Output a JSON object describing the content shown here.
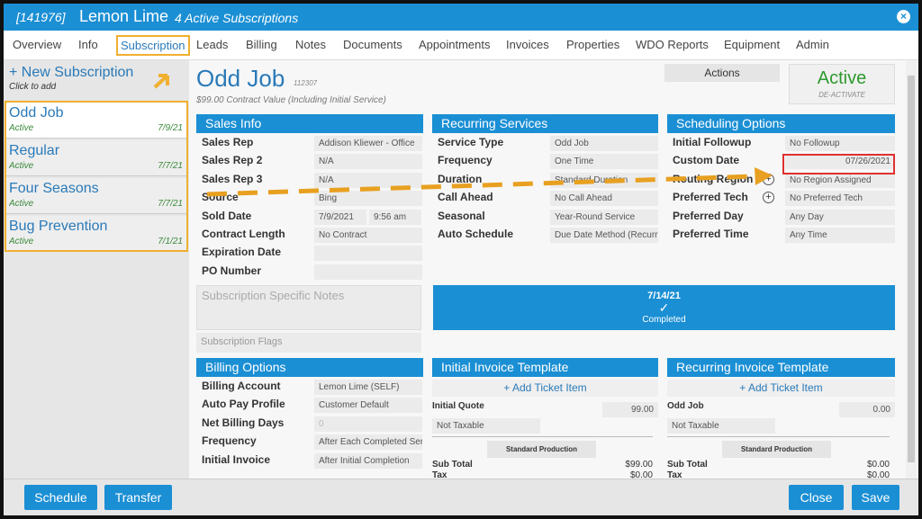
{
  "header": {
    "id": "[141976]",
    "name": "Lemon Lime",
    "subtitle": "4 Active Subscriptions"
  },
  "tabs": {
    "items": [
      "Overview",
      "Info",
      "Subscription",
      "Leads",
      "Billing",
      "Notes",
      "Documents",
      "Appointments",
      "Invoices",
      "Properties",
      "WDO Reports",
      "Equipment",
      "Admin"
    ],
    "active_index": 2
  },
  "sidebar": {
    "new_label": "+ New Subscription",
    "hint": "Click to add",
    "selected_index": 0,
    "items": [
      {
        "name": "Odd Job",
        "status": "Active",
        "date": "7/9/21"
      },
      {
        "name": "Regular",
        "status": "Active",
        "date": "7/7/21"
      },
      {
        "name": "Four Seasons",
        "status": "Active",
        "date": "7/7/21"
      },
      {
        "name": "Bug Prevention",
        "status": "Active",
        "date": "7/1/21"
      }
    ]
  },
  "subscription": {
    "title": "Odd Job",
    "code": "112307",
    "value_note": "$99.00 Contract Value (Including Initial Service)",
    "actions": "Actions",
    "status": "Active",
    "deactivate": "DE-ACTIVATE"
  },
  "sales_info": {
    "title": "Sales Info",
    "fields": [
      {
        "label": "Sales Rep",
        "value": "Addison Kliewer - Office"
      },
      {
        "label": "Sales Rep 2",
        "value": "N/A"
      },
      {
        "label": "Sales Rep 3",
        "value": "N/A"
      },
      {
        "label": "Source",
        "value": "Bing"
      },
      {
        "label": "Sold Date",
        "value": "7/9/2021",
        "value2": "9:56 am"
      },
      {
        "label": "Contract Length",
        "value": "No Contract"
      },
      {
        "label": "Expiration Date"
      },
      {
        "label": "PO Number"
      }
    ],
    "notes_placeholder": "Subscription Specific Notes",
    "flags_placeholder": "Subscription Flags"
  },
  "recurring_services": {
    "title": "Recurring Services",
    "fields": [
      {
        "label": "Service Type",
        "value": "Odd Job"
      },
      {
        "label": "Frequency",
        "value": "One Time"
      },
      {
        "label": "Duration",
        "value": "Standard Duration"
      },
      {
        "label": "Call Ahead",
        "value": "No Call Ahead"
      },
      {
        "label": "Seasonal",
        "value": "Year-Round Service"
      },
      {
        "label": "Auto Schedule",
        "value": "Due Date Method (Recurring)"
      }
    ]
  },
  "scheduling": {
    "title": "Scheduling Options",
    "fields": [
      {
        "label": "Initial Followup",
        "value": "No Followup"
      },
      {
        "label": "Custom Date",
        "value": "07/26/2021",
        "align": "right"
      },
      {
        "label": "Routing Region",
        "value": "No Region Assigned",
        "add_button": true
      },
      {
        "label": "Preferred Tech",
        "value": "No Preferred Tech",
        "add_button": true
      },
      {
        "label": "Preferred Day",
        "value": "Any Day"
      },
      {
        "label": "Preferred Time",
        "value": "Any Time"
      }
    ]
  },
  "completed": {
    "date": "7/14/21",
    "check": "✓",
    "label": "Completed"
  },
  "billing": {
    "title": "Billing Options",
    "fields": [
      {
        "label": "Billing Account",
        "value": "Lemon Lime (SELF)"
      },
      {
        "label": "Auto Pay Profile",
        "value": "Customer Default"
      },
      {
        "label": "Net Billing Days",
        "value": "0",
        "muted": true
      },
      {
        "label": "Frequency",
        "value": "After Each Completed Service"
      },
      {
        "label": "Initial Invoice",
        "value": "After Initial Completion"
      }
    ]
  },
  "initial_invoice": {
    "title": "Initial Invoice Template",
    "add": "+ Add Ticket Item",
    "item_label": "Initial Quote",
    "item_value": "99.00",
    "taxable": "Not Taxable",
    "production": "Standard Production",
    "subtotal_label": "Sub Total",
    "subtotal": "$99.00",
    "tax_label": "Tax",
    "tax": "$0.00"
  },
  "recurring_invoice": {
    "title": "Recurring Invoice Template",
    "add": "+ Add Ticket Item",
    "item_label": "Odd Job",
    "item_value": "0.00",
    "taxable": "Not Taxable",
    "production": "Standard Production",
    "subtotal_label": "Sub Total",
    "subtotal": "$0.00",
    "tax_label": "Tax",
    "tax": "$0.00"
  },
  "footer": {
    "left_buttons": [
      "Schedule",
      "Transfer"
    ],
    "right_buttons": [
      "Close",
      "Save"
    ]
  }
}
